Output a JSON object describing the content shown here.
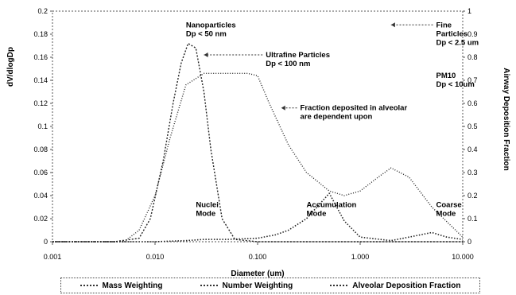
{
  "chart_data": {
    "type": "line",
    "xlabel": "Diameter (um)",
    "ylabel_left": "dV/dlogDp",
    "ylabel_right": "Airway Deposition Fraction",
    "x_scale": "log",
    "xlim": [
      0.001,
      10
    ],
    "x_ticks": [
      "0.001",
      "0.010",
      "0.100",
      "1.000",
      "10.000"
    ],
    "ylim_left": [
      0,
      0.2
    ],
    "y_ticks_left": [
      "0.2",
      "0.18",
      "0.16",
      "0.14",
      "0.12",
      "0.1",
      "0.08",
      "0.06",
      "0.04",
      "0.02",
      "0"
    ],
    "ylim_right": [
      0,
      1
    ],
    "y_ticks_right": [
      "1",
      "0.9",
      "0.8",
      "0.7",
      "0.6",
      "0.5",
      "0.4",
      "0.3",
      "0.2",
      "0.1",
      "0"
    ],
    "series": [
      {
        "name": "Mass Weighting",
        "axis": "left",
        "x": [
          0.001,
          0.01,
          0.02,
          0.03,
          0.05,
          0.1,
          0.15,
          0.2,
          0.3,
          0.5,
          0.7,
          1,
          2,
          3,
          5,
          7,
          10
        ],
        "y": [
          0,
          0,
          0.001,
          0.002,
          0.002,
          0.003,
          0.006,
          0.01,
          0.02,
          0.042,
          0.018,
          0.004,
          0.001,
          0.004,
          0.008,
          0.004,
          0.002
        ]
      },
      {
        "name": "Number Weighting",
        "axis": "left",
        "x": [
          0.001,
          0.004,
          0.007,
          0.009,
          0.012,
          0.015,
          0.018,
          0.021,
          0.025,
          0.03,
          0.035,
          0.045,
          0.06,
          0.1,
          0.2,
          1,
          10
        ],
        "y": [
          0,
          0,
          0.003,
          0.02,
          0.07,
          0.12,
          0.155,
          0.172,
          0.168,
          0.13,
          0.08,
          0.02,
          0.002,
          0,
          0,
          0,
          0
        ]
      },
      {
        "name": "Alveolar Deposition Fraction",
        "axis": "right",
        "x": [
          0.001,
          0.005,
          0.007,
          0.01,
          0.014,
          0.02,
          0.03,
          0.05,
          0.08,
          0.1,
          0.13,
          0.2,
          0.3,
          0.5,
          0.7,
          1,
          1.5,
          2,
          3,
          5,
          10
        ],
        "y": [
          0,
          0,
          0.05,
          0.2,
          0.45,
          0.68,
          0.73,
          0.73,
          0.73,
          0.72,
          0.6,
          0.42,
          0.3,
          0.22,
          0.2,
          0.22,
          0.28,
          0.32,
          0.28,
          0.15,
          0.02
        ]
      }
    ],
    "annotations": [
      {
        "lines": [
          "Nanoparticles",
          "Dp < 50 nm"
        ],
        "x": 0.02,
        "y_right": 0.93
      },
      {
        "lines": [
          "Ultrafine Particles",
          "Dp < 100 nm"
        ],
        "x": 0.12,
        "y_right": 0.8,
        "arrow_to_x": 0.03
      },
      {
        "lines": [
          "Fine",
          "Particles",
          "Dp < 2.5 um"
        ],
        "x": 5.5,
        "y_right": 0.93,
        "arrow_to_x": 2.0
      },
      {
        "lines": [
          "PM10",
          "Dp < 10um"
        ],
        "x": 5.5,
        "y_right": 0.71
      },
      {
        "lines": [
          "Fraction deposited in alveolar",
          "are dependent upon"
        ],
        "x": 0.26,
        "y_right": 0.57,
        "arrow_to_x": 0.17
      },
      {
        "lines": [
          "Nuclei",
          "Mode"
        ],
        "x": 0.025,
        "y_right": 0.15
      },
      {
        "lines": [
          "Accumulation",
          "Mode"
        ],
        "x": 0.3,
        "y_right": 0.15
      },
      {
        "lines": [
          "Coarse",
          "Mode"
        ],
        "x": 5.5,
        "y_right": 0.15
      }
    ]
  }
}
